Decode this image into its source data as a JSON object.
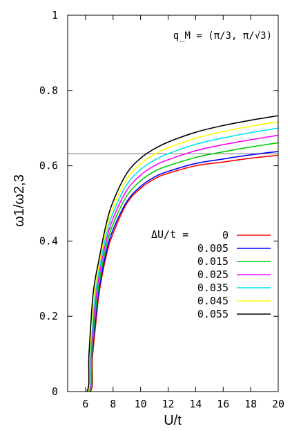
{
  "chart_data": {
    "type": "line",
    "annotation": "q_M = (π/3, π/√3)",
    "xlabel": "U/t",
    "ylabel": "ω1/ω2,3",
    "xlim": [
      4.7,
      20
    ],
    "ylim": [
      0,
      1
    ],
    "x_ticks": [
      6,
      8,
      10,
      12,
      14,
      16,
      18,
      20
    ],
    "y_ticks": [
      0,
      0.2,
      0.4,
      0.6,
      0.8,
      1
    ],
    "y_tick_labels": [
      "0",
      "0.2",
      "0.4",
      "0.6",
      "0.8",
      "1"
    ],
    "reference_line": {
      "y": 0.632,
      "color": "#808080"
    },
    "legend": {
      "title": "ΔU/t =",
      "placement": "right-middle"
    },
    "series": [
      {
        "name": "0",
        "color": "#ff0000",
        "x": [
          4.7,
          6.35,
          6.5,
          6.8,
          7.0,
          7.5,
          8.0,
          9.0,
          10.0,
          11.0,
          12.0,
          14.0,
          16.0,
          18.0,
          20.0
        ],
        "y": [
          0,
          0,
          0.09,
          0.2,
          0.265,
          0.36,
          0.42,
          0.5,
          0.54,
          0.565,
          0.58,
          0.6,
          0.61,
          0.62,
          0.628
        ]
      },
      {
        "name": "0.005",
        "color": "#0000ff",
        "x": [
          4.7,
          6.3,
          6.45,
          6.75,
          7.0,
          7.5,
          8.0,
          9.0,
          10.0,
          11.0,
          12.0,
          14.0,
          16.0,
          18.0,
          20.0
        ],
        "y": [
          0,
          0,
          0.09,
          0.2,
          0.275,
          0.37,
          0.43,
          0.505,
          0.545,
          0.57,
          0.585,
          0.606,
          0.618,
          0.629,
          0.638
        ]
      },
      {
        "name": "0.015",
        "color": "#00cc00",
        "x": [
          4.7,
          6.3,
          6.45,
          6.75,
          7.0,
          7.5,
          8.0,
          9.0,
          10.0,
          11.0,
          12.0,
          14.0,
          16.0,
          18.0,
          20.0
        ],
        "y": [
          0,
          0,
          0.1,
          0.22,
          0.29,
          0.385,
          0.445,
          0.52,
          0.56,
          0.585,
          0.6,
          0.622,
          0.637,
          0.65,
          0.661
        ]
      },
      {
        "name": "0.025",
        "color": "#ff00ff",
        "x": [
          4.7,
          6.25,
          6.4,
          6.7,
          7.0,
          7.5,
          8.0,
          9.0,
          10.0,
          11.0,
          12.0,
          14.0,
          16.0,
          18.0,
          20.0
        ],
        "y": [
          0,
          0,
          0.1,
          0.23,
          0.31,
          0.4,
          0.46,
          0.535,
          0.575,
          0.6,
          0.616,
          0.64,
          0.656,
          0.669,
          0.681
        ]
      },
      {
        "name": "0.035",
        "color": "#00e5ee",
        "x": [
          4.7,
          6.2,
          6.35,
          6.65,
          7.0,
          7.5,
          8.0,
          9.0,
          10.0,
          11.0,
          12.0,
          14.0,
          16.0,
          18.0,
          20.0
        ],
        "y": [
          0,
          0,
          0.1,
          0.24,
          0.325,
          0.415,
          0.475,
          0.55,
          0.59,
          0.615,
          0.632,
          0.657,
          0.674,
          0.688,
          0.7
        ]
      },
      {
        "name": "0.045",
        "color": "#ffff00",
        "x": [
          4.7,
          6.15,
          6.3,
          6.6,
          7.0,
          7.5,
          8.0,
          9.0,
          10.0,
          11.0,
          12.0,
          14.0,
          16.0,
          18.0,
          20.0
        ],
        "y": [
          0,
          0,
          0.1,
          0.25,
          0.34,
          0.43,
          0.49,
          0.565,
          0.605,
          0.63,
          0.648,
          0.673,
          0.691,
          0.705,
          0.717
        ]
      },
      {
        "name": "0.055",
        "color": "#000000",
        "x": [
          4.7,
          6.1,
          6.25,
          6.55,
          7.0,
          7.5,
          8.0,
          9.0,
          10.0,
          11.0,
          12.0,
          14.0,
          16.0,
          18.0,
          20.0
        ],
        "y": [
          0,
          0,
          0.1,
          0.26,
          0.355,
          0.445,
          0.505,
          0.58,
          0.62,
          0.645,
          0.663,
          0.689,
          0.707,
          0.721,
          0.733
        ]
      }
    ]
  }
}
